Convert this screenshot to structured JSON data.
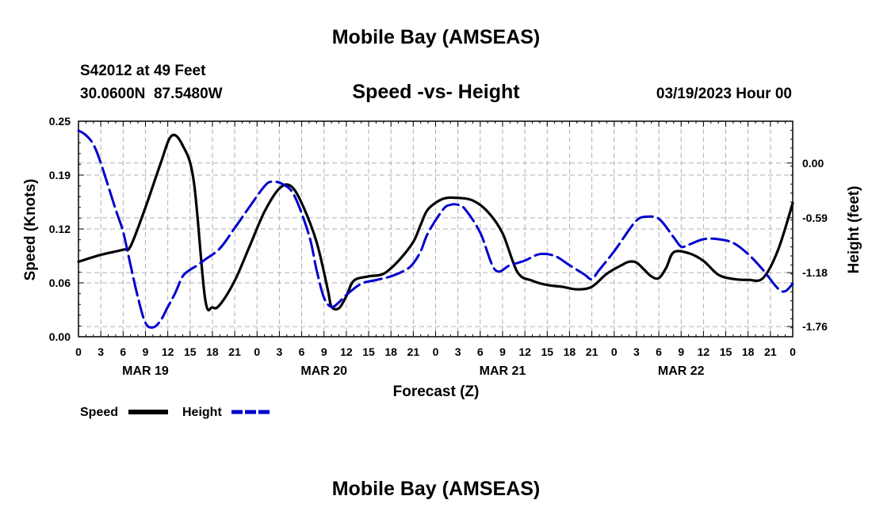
{
  "page": {
    "top_title": "Mobile Bay (AMSEAS)",
    "bottom_title": "Mobile Bay (AMSEAS)",
    "station": "S42012 at 49 Feet",
    "coords": "30.0600N  87.5480W",
    "chart_title": "Speed -vs- Height",
    "run_time": "03/19/2023 Hour 00"
  },
  "chart_data": {
    "type": "line",
    "title": "Speed -vs- Height",
    "xlabel": "Forecast (Z)",
    "ylabel": "Speed (Knots)",
    "y2label": "Height (feet)",
    "xlim": [
      0,
      96
    ],
    "ylim": [
      0,
      0.25
    ],
    "y2lim": [
      -1.87,
      0.45
    ],
    "x_tick_labels": [
      "0",
      "3",
      "6",
      "9",
      "12",
      "15",
      "18",
      "21",
      "0",
      "3",
      "6",
      "9",
      "12",
      "15",
      "18",
      "21",
      "0",
      "3",
      "6",
      "9",
      "12",
      "15",
      "18",
      "21",
      "0",
      "3",
      "6",
      "9",
      "12",
      "15",
      "18",
      "21",
      "0"
    ],
    "date_labels": [
      {
        "label": "MAR 19",
        "x": 9
      },
      {
        "label": "MAR 20",
        "x": 33
      },
      {
        "label": "MAR 21",
        "x": 57
      },
      {
        "label": "MAR 22",
        "x": 81
      }
    ],
    "y_ticks": [
      "0.00",
      "0.06",
      "0.12",
      "0.19",
      "0.25"
    ],
    "y_tick_values": [
      0,
      0.0625,
      0.125,
      0.1875,
      0.25
    ],
    "y2_ticks": [
      "-1.76",
      "-1.18",
      "-0.59",
      "0.00"
    ],
    "y2_tick_values": [
      -1.76,
      -1.18,
      -0.59,
      0.0
    ],
    "grid": true,
    "legend_position": "bottom-left",
    "series": [
      {
        "name": "Speed",
        "axis": "left",
        "color": "#000000",
        "dash": "solid",
        "x": [
          0,
          3,
          6,
          7,
          9,
          11,
          12.5,
          14,
          15.5,
          17,
          18,
          19,
          21,
          23,
          25,
          27,
          28.5,
          30,
          32,
          33.5,
          34,
          35,
          36,
          37,
          39,
          41,
          43,
          45,
          46,
          47,
          49,
          51,
          53,
          55,
          57,
          59,
          61,
          63,
          65,
          67,
          69,
          71,
          73,
          74,
          75,
          76,
          77,
          78,
          79,
          80,
          82,
          84,
          86,
          88,
          90,
          92,
          94,
          96
        ],
        "values": [
          0.087,
          0.095,
          0.101,
          0.105,
          0.15,
          0.2,
          0.233,
          0.222,
          0.18,
          0.045,
          0.034,
          0.037,
          0.065,
          0.105,
          0.145,
          0.172,
          0.175,
          0.155,
          0.11,
          0.055,
          0.035,
          0.033,
          0.047,
          0.065,
          0.07,
          0.073,
          0.088,
          0.11,
          0.13,
          0.148,
          0.16,
          0.161,
          0.158,
          0.145,
          0.12,
          0.075,
          0.065,
          0.06,
          0.058,
          0.055,
          0.058,
          0.073,
          0.083,
          0.087,
          0.086,
          0.078,
          0.07,
          0.068,
          0.08,
          0.098,
          0.097,
          0.088,
          0.072,
          0.067,
          0.066,
          0.068,
          0.1,
          0.155
        ]
      },
      {
        "name": "Height",
        "axis": "right",
        "color": "#0000CC",
        "dash": "dashed",
        "x": [
          0,
          1,
          2,
          3,
          5,
          6,
          7,
          8,
          9,
          10,
          11,
          12,
          13,
          14,
          15,
          16,
          17,
          19,
          21,
          23,
          25,
          26,
          27.5,
          29,
          31,
          32,
          33,
          34,
          35,
          36,
          38,
          40,
          42,
          44,
          45,
          46,
          47,
          49,
          50,
          51,
          52,
          54,
          56,
          58,
          60,
          62,
          64,
          66,
          68,
          69,
          70,
          72,
          74,
          75,
          76,
          78,
          80,
          81,
          82,
          84,
          86,
          88,
          90,
          92,
          94,
          95,
          96
        ],
        "values": [
          0.35,
          0.3,
          0.2,
          0.0,
          -0.5,
          -0.74,
          -1.1,
          -1.45,
          -1.72,
          -1.77,
          -1.7,
          -1.55,
          -1.4,
          -1.22,
          -1.15,
          -1.1,
          -1.04,
          -0.92,
          -0.7,
          -0.47,
          -0.25,
          -0.2,
          -0.23,
          -0.35,
          -0.78,
          -1.15,
          -1.45,
          -1.55,
          -1.5,
          -1.42,
          -1.3,
          -1.26,
          -1.22,
          -1.15,
          -1.08,
          -0.95,
          -0.75,
          -0.5,
          -0.45,
          -0.45,
          -0.5,
          -0.75,
          -1.15,
          -1.1,
          -1.05,
          -0.98,
          -1.0,
          -1.1,
          -1.2,
          -1.25,
          -1.15,
          -0.95,
          -0.72,
          -0.62,
          -0.58,
          -0.6,
          -0.8,
          -0.9,
          -0.88,
          -0.82,
          -0.82,
          -0.86,
          -0.98,
          -1.15,
          -1.35,
          -1.38,
          -1.3
        ]
      }
    ]
  }
}
